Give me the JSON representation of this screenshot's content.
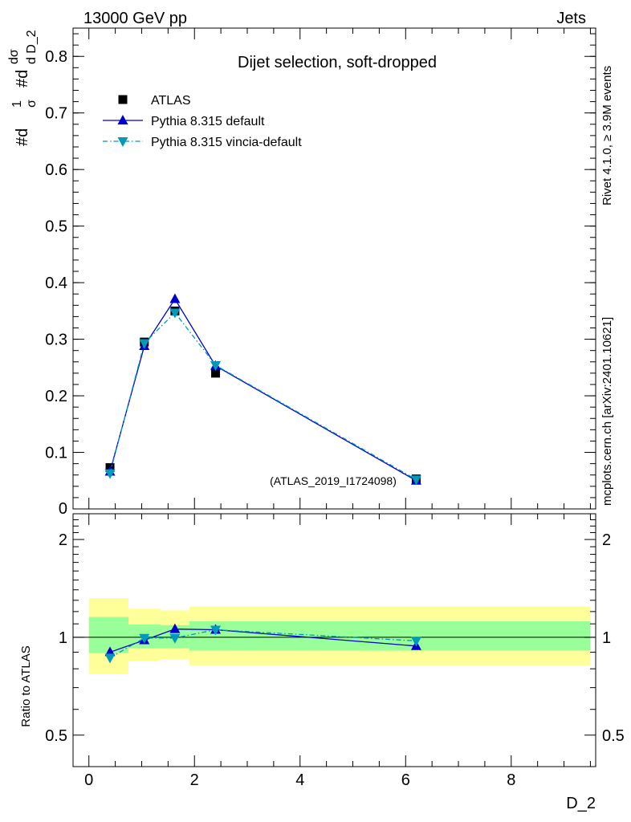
{
  "header": {
    "left": "13000 GeV pp",
    "right": "Jets"
  },
  "side_labels": {
    "rivet": "Rivet 4.1.0, ≥ 3.9M events",
    "mcplots": "mcplots.cern.ch [arXiv:2401.10621]"
  },
  "colors": {
    "atlas": "#000000",
    "pythia_default": "#0000cc",
    "pythia_vincia": "#0099bb",
    "band_outer": "#ffff99",
    "band_inner": "#99ff99"
  },
  "chart_data": [
    {
      "type": "line",
      "panel": "main",
      "title": "Dijet selection, soft-dropped",
      "ylabel": "#dσ / #d D_2 · 1/σ",
      "ylabel_parts": {
        "p1": "#d",
        "p2": "1",
        "p3": "σ",
        "p4": "#d",
        "p5": "dσ",
        "p6": "d D_2"
      },
      "xlim": [
        -0.3,
        9.6
      ],
      "ylim": [
        0,
        0.85
      ],
      "yticks": [
        0.1,
        0.2,
        0.3,
        0.4,
        0.5,
        0.6,
        0.7,
        0.8
      ],
      "ytick_labels": [
        "0.1",
        "0.2",
        "0.3",
        "0.4",
        "0.5",
        "0.6",
        "0.7",
        "0.8"
      ],
      "ytick_zero_label": "0",
      "watermark": "(ATLAS_2019_I1724098)",
      "legend_position": "top-left",
      "series": [
        {
          "name": "ATLAS",
          "marker": "square",
          "x": [
            0.4,
            1.05,
            1.63,
            2.4,
            6.2
          ],
          "values": [
            0.073,
            0.295,
            0.35,
            0.24,
            0.053
          ]
        },
        {
          "name": "Pythia 8.315 default",
          "marker": "triangle-up",
          "line": "solid",
          "x": [
            0.4,
            1.05,
            1.63,
            2.4,
            6.2
          ],
          "values": [
            0.066,
            0.288,
            0.371,
            0.253,
            0.05
          ]
        },
        {
          "name": "Pythia 8.315 vincia-default",
          "marker": "triangle-down",
          "line": "dashdot",
          "x": [
            0.4,
            1.05,
            1.63,
            2.4,
            6.2
          ],
          "values": [
            0.063,
            0.293,
            0.347,
            0.254,
            0.052
          ]
        }
      ]
    },
    {
      "type": "line",
      "panel": "ratio",
      "ylabel": "Ratio to ATLAS",
      "xlabel": "D_2",
      "xlim": [
        -0.3,
        9.6
      ],
      "ylim": [
        0.4,
        2.4
      ],
      "yscale": "log",
      "yticks": [
        0.5,
        1,
        2
      ],
      "ytick_labels": [
        "0.5",
        "1",
        "2"
      ],
      "xticks": [
        0,
        2,
        4,
        6,
        8
      ],
      "xtick_labels": [
        "0",
        "2",
        "4",
        "6",
        "8"
      ],
      "bands": [
        {
          "x_low": 0.0,
          "x_high": 0.75,
          "inner": [
            0.895,
            1.155
          ],
          "outer": [
            0.77,
            1.32
          ]
        },
        {
          "x_low": 0.75,
          "x_high": 1.35,
          "inner": [
            0.925,
            1.095
          ],
          "outer": [
            0.845,
            1.225
          ]
        },
        {
          "x_low": 1.35,
          "x_high": 1.9,
          "inner": [
            0.925,
            1.09
          ],
          "outer": [
            0.855,
            1.21
          ]
        },
        {
          "x_low": 1.9,
          "x_high": 9.5,
          "inner": [
            0.91,
            1.12
          ],
          "outer": [
            0.82,
            1.245
          ]
        }
      ],
      "series": [
        {
          "name": "Pythia 8.315 default",
          "x": [
            0.4,
            1.05,
            1.63,
            2.4,
            6.2
          ],
          "values": [
            0.9,
            0.98,
            1.06,
            1.055,
            0.94
          ]
        },
        {
          "name": "Pythia 8.315 vincia-default",
          "x": [
            0.4,
            1.05,
            1.63,
            2.4,
            6.2
          ],
          "values": [
            0.865,
            0.995,
            0.995,
            1.055,
            0.975
          ]
        }
      ]
    }
  ]
}
